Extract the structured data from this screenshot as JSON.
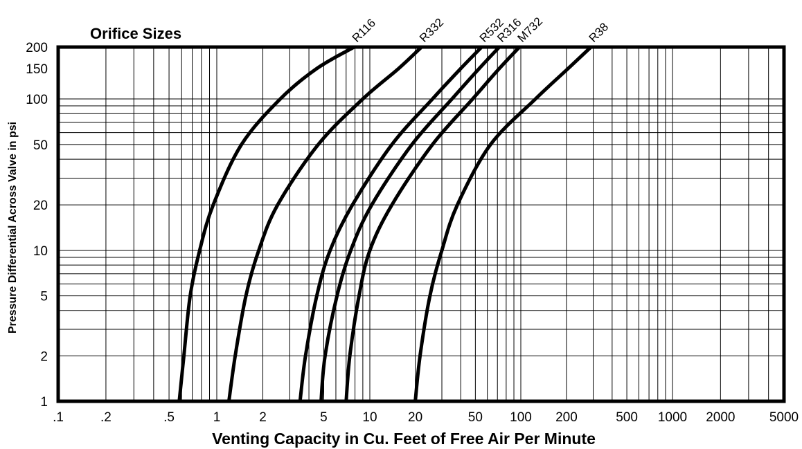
{
  "chart_data": {
    "type": "line",
    "title": "Orifice Sizes",
    "xlabel": "Venting Capacity in Cu. Feet of Free Air Per Minute",
    "ylabel": "Pressure Differential Across Valve in psi",
    "x_scale": "log",
    "y_scale": "log",
    "xlim": [
      0.1,
      5000
    ],
    "ylim": [
      1,
      200
    ],
    "grid": true,
    "x_ticks": [
      {
        "value": 0.1,
        "label": ".1"
      },
      {
        "value": 0.2,
        "label": ".2"
      },
      {
        "value": 0.5,
        "label": ".5"
      },
      {
        "value": 1,
        "label": "1"
      },
      {
        "value": 2,
        "label": "2"
      },
      {
        "value": 5,
        "label": "5"
      },
      {
        "value": 10,
        "label": "10"
      },
      {
        "value": 20,
        "label": "20"
      },
      {
        "value": 50,
        "label": "50"
      },
      {
        "value": 100,
        "label": "100"
      },
      {
        "value": 200,
        "label": "200"
      },
      {
        "value": 500,
        "label": "500"
      },
      {
        "value": 1000,
        "label": "1000"
      },
      {
        "value": 2000,
        "label": "2000"
      },
      {
        "value": 5000,
        "label": "5000"
      }
    ],
    "y_ticks": [
      {
        "value": 1,
        "label": "1"
      },
      {
        "value": 2,
        "label": "2"
      },
      {
        "value": 5,
        "label": "5"
      },
      {
        "value": 10,
        "label": "10"
      },
      {
        "value": 20,
        "label": "20"
      },
      {
        "value": 50,
        "label": "50"
      },
      {
        "value": 100,
        "label": "100"
      },
      {
        "value": 150,
        "label": "150"
      },
      {
        "value": 200,
        "label": "200"
      }
    ],
    "series": [
      {
        "name": "R116",
        "points": [
          [
            0.58,
            1
          ],
          [
            0.62,
            2
          ],
          [
            0.68,
            5
          ],
          [
            0.78,
            10
          ],
          [
            0.95,
            20
          ],
          [
            1.45,
            50
          ],
          [
            2.6,
            100
          ],
          [
            4.5,
            150
          ],
          [
            7.9,
            200
          ]
        ]
      },
      {
        "name": "R332",
        "points": [
          [
            1.2,
            1
          ],
          [
            1.32,
            2
          ],
          [
            1.55,
            5
          ],
          [
            1.88,
            10
          ],
          [
            2.5,
            20
          ],
          [
            4.6,
            50
          ],
          [
            9.0,
            100
          ],
          [
            15.5,
            150
          ],
          [
            22,
            200
          ]
        ]
      },
      {
        "name": "R532",
        "points": [
          [
            3.5,
            1
          ],
          [
            3.8,
            2
          ],
          [
            4.5,
            5
          ],
          [
            5.5,
            10
          ],
          [
            7.7,
            20
          ],
          [
            14,
            50
          ],
          [
            26,
            100
          ],
          [
            40,
            150
          ],
          [
            55,
            200
          ]
        ]
      },
      {
        "name": "R316",
        "points": [
          [
            4.8,
            1
          ],
          [
            5.1,
            2
          ],
          [
            6.1,
            5
          ],
          [
            7.5,
            10
          ],
          [
            10.3,
            20
          ],
          [
            19,
            50
          ],
          [
            35,
            100
          ],
          [
            53,
            150
          ],
          [
            72,
            200
          ]
        ]
      },
      {
        "name": "M732",
        "points": [
          [
            7.0,
            1
          ],
          [
            7.4,
            2
          ],
          [
            8.5,
            5
          ],
          [
            10,
            10
          ],
          [
            14,
            20
          ],
          [
            26,
            50
          ],
          [
            48,
            100
          ],
          [
            72,
            150
          ],
          [
            98,
            200
          ]
        ]
      },
      {
        "name": "R38",
        "points": [
          [
            20,
            1
          ],
          [
            21.5,
            2
          ],
          [
            25,
            5
          ],
          [
            30,
            10
          ],
          [
            38,
            20
          ],
          [
            63,
            50
          ],
          [
            125,
            100
          ],
          [
            205,
            150
          ],
          [
            290,
            200
          ]
        ]
      }
    ]
  }
}
